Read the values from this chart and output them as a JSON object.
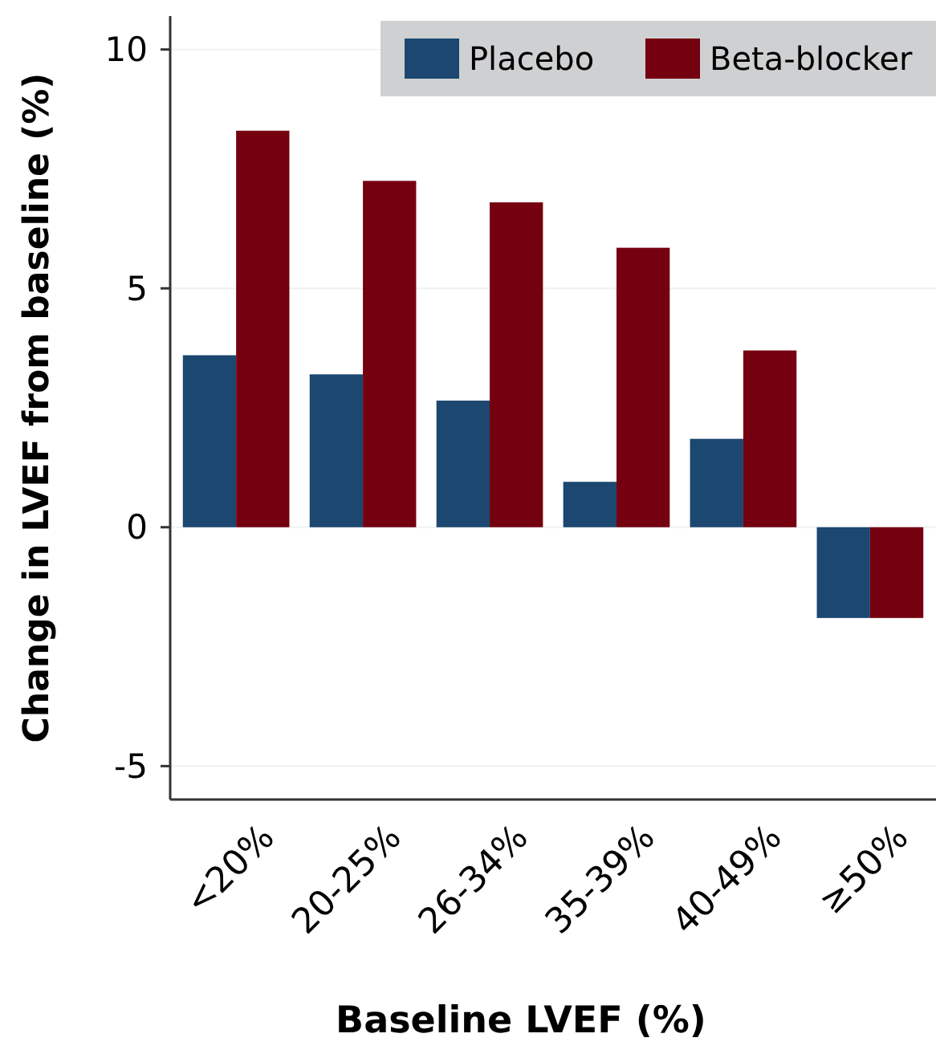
{
  "chart_data": {
    "type": "bar",
    "xlabel": "Baseline LVEF (%)",
    "ylabel": "Change in LVEF from baseline (%)",
    "categories": [
      "<20%",
      "20-25%",
      "26-34%",
      "35-39%",
      "40-49%",
      "≥50%"
    ],
    "series": [
      {
        "name": "Placebo",
        "color": "#1b4770",
        "values": [
          3.6,
          3.2,
          2.65,
          0.95,
          1.85,
          -1.9
        ]
      },
      {
        "name": "Beta-blocker",
        "color": "#75000f",
        "values": [
          8.3,
          7.25,
          6.8,
          5.85,
          3.7,
          -1.9
        ]
      }
    ],
    "ylim": [
      -5.7,
      10.7
    ],
    "yticks": [
      {
        "value": -5,
        "label": "-5"
      },
      0,
      5,
      10
    ],
    "grid": "y",
    "legend": "top right"
  }
}
